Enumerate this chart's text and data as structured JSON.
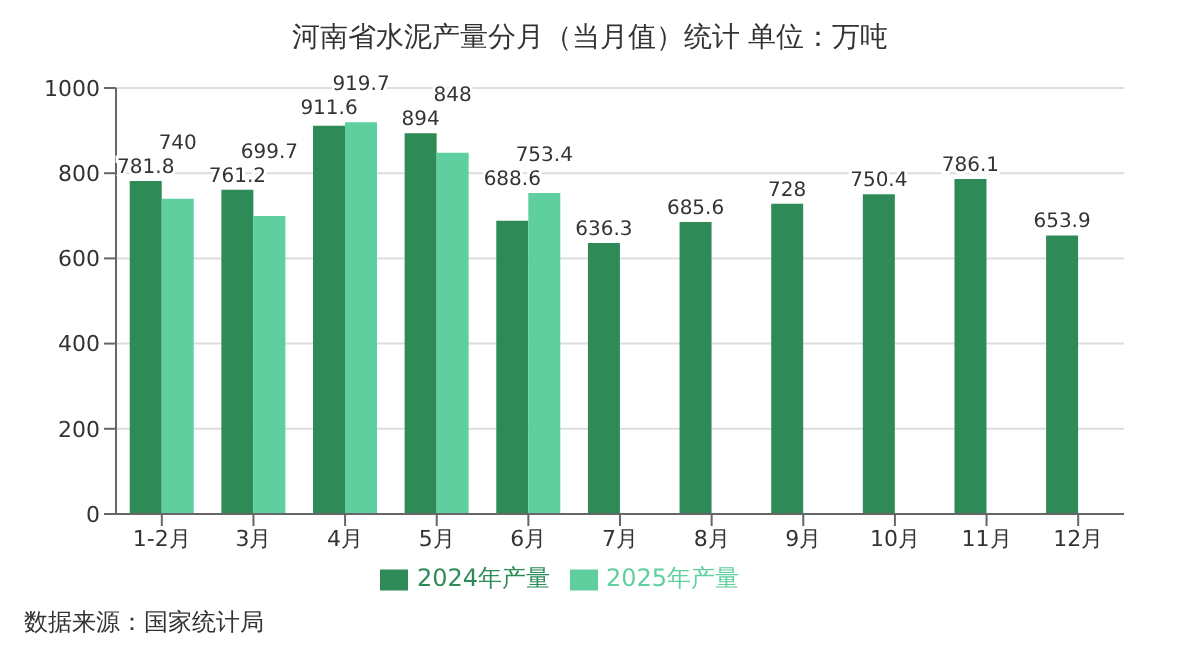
{
  "chart_data": {
    "type": "bar",
    "title": "河南省水泥产量分月（当月值）统计 单位：万吨",
    "categories": [
      "1-2月",
      "3月",
      "4月",
      "5月",
      "6月",
      "7月",
      "8月",
      "9月",
      "10月",
      "11月",
      "12月"
    ],
    "series": [
      {
        "name": "2024年产量",
        "color": "#2e8b57",
        "values": [
          781.8,
          761.2,
          911.6,
          894,
          688.6,
          636.3,
          685.6,
          728,
          750.4,
          786.1,
          653.9
        ]
      },
      {
        "name": "2025年产量",
        "color": "#5fcfa0",
        "values": [
          740,
          699.7,
          919.7,
          848,
          753.4,
          null,
          null,
          null,
          null,
          null,
          null
        ]
      }
    ],
    "ylim": [
      0,
      1000
    ],
    "yticks": [
      0,
      200,
      400,
      600,
      800,
      1000
    ],
    "grid": "y",
    "legend": "bottom",
    "data_labels": true,
    "annotations": [
      "数据来源：国家统计局"
    ]
  }
}
